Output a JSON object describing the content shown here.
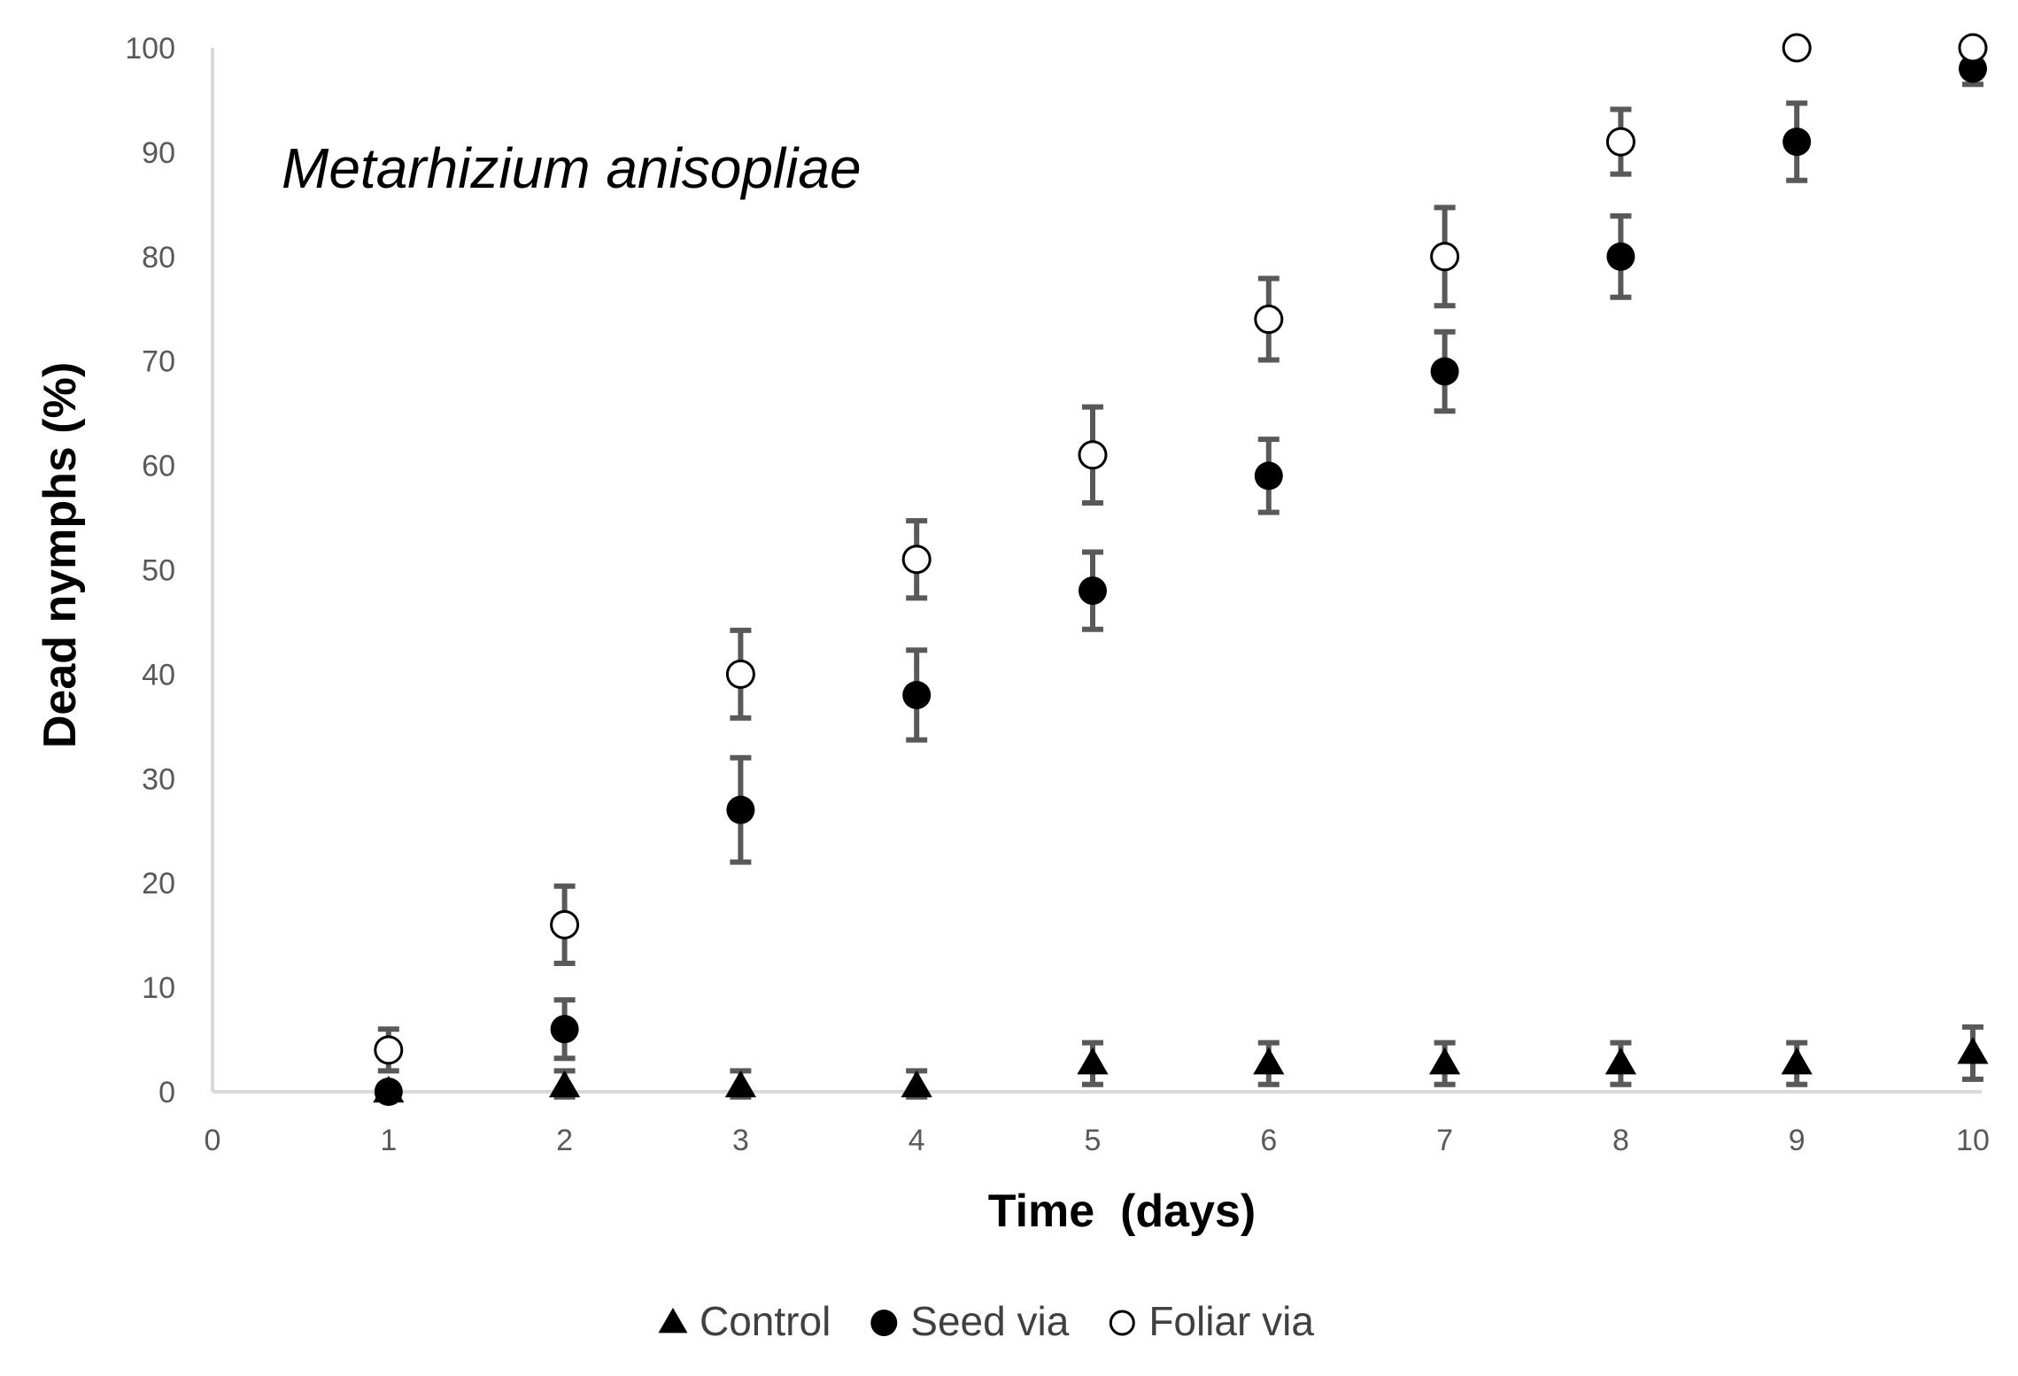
{
  "chart_data": {
    "type": "scatter",
    "title": "",
    "annotation": "Metarhizium anisopliae",
    "xlabel": "Time  (days)",
    "ylabel": "Dead nymphs (%)",
    "xlim": [
      0,
      10
    ],
    "ylim": [
      0,
      100
    ],
    "x_ticks": [
      "0",
      "1",
      "2",
      "3",
      "4",
      "5",
      "6",
      "7",
      "8",
      "9",
      "10"
    ],
    "y_ticks": [
      "0",
      "10",
      "20",
      "30",
      "40",
      "50",
      "60",
      "70",
      "80",
      "90",
      "100"
    ],
    "grid": false,
    "legend_position": "bottom",
    "x": [
      1,
      2,
      3,
      4,
      5,
      6,
      7,
      8,
      9,
      10
    ],
    "series": [
      {
        "name": "Control",
        "marker": "triangle",
        "color": "#000000",
        "values": [
          0,
          0.5,
          0.5,
          0.5,
          2.7,
          2.7,
          2.7,
          2.7,
          2.7,
          3.7
        ],
        "errors": [
          0,
          1.5,
          1.5,
          1.5,
          2,
          2,
          2,
          2,
          2,
          2.5
        ]
      },
      {
        "name": "Seed via",
        "marker": "filled-circle",
        "color": "#000000",
        "values": [
          0,
          6,
          27,
          38,
          48,
          59,
          69,
          80,
          91,
          98
        ],
        "errors": [
          0.5,
          2.8,
          5,
          4.3,
          3.7,
          3.5,
          3.8,
          3.9,
          3.7,
          1.5
        ]
      },
      {
        "name": "Foliar via",
        "marker": "open-circle",
        "color": "#000000",
        "values": [
          4,
          16,
          40,
          51,
          61,
          74,
          80,
          91,
          100,
          100
        ],
        "errors": [
          2,
          3.7,
          4.2,
          3.7,
          4.6,
          3.9,
          4.7,
          3.1,
          0,
          0
        ]
      }
    ],
    "error_bar_color": "#595959",
    "axis_color": "#d9d9d9"
  }
}
